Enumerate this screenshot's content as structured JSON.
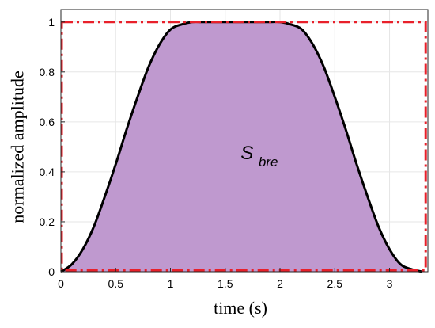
{
  "chart_data": {
    "type": "area",
    "title": "",
    "xlabel": "time (s)",
    "ylabel": "normalized amplitude",
    "xlim": [
      0,
      3.35
    ],
    "ylim": [
      0,
      1.05
    ],
    "x_ticks": [
      0,
      0.5,
      1,
      1.5,
      2,
      2.5,
      3
    ],
    "y_ticks": [
      0,
      0.2,
      0.4,
      0.6,
      0.8,
      1
    ],
    "grid": true,
    "series": [
      {
        "type": "area",
        "color": "#000000",
        "fill": "#bf99cf",
        "x": [
          0,
          0.1,
          0.2,
          0.3,
          0.4,
          0.5,
          0.6,
          0.7,
          0.8,
          0.9,
          1.0,
          1.1,
          1.2,
          1.3,
          1.5,
          1.7,
          1.9,
          2.0,
          2.1,
          2.2,
          2.3,
          2.4,
          2.5,
          2.6,
          2.7,
          2.8,
          2.9,
          3.0,
          3.1,
          3.2,
          3.3
        ],
        "y": [
          0,
          0.03,
          0.09,
          0.18,
          0.3,
          0.43,
          0.57,
          0.7,
          0.82,
          0.91,
          0.97,
          0.99,
          1.0,
          1.0,
          1.0,
          1.0,
          1.0,
          1.0,
          0.99,
          0.97,
          0.91,
          0.82,
          0.7,
          0.57,
          0.43,
          0.3,
          0.18,
          0.09,
          0.03,
          0.01,
          0
        ]
      },
      {
        "type": "rect-outline",
        "color": "#e8202a",
        "dash": "dash-dot",
        "x": [
          0,
          3.33
        ],
        "y": [
          0,
          1
        ]
      }
    ],
    "annotation": {
      "main": "S",
      "subscript": "bre",
      "x": 1.72,
      "y": 0.45
    }
  }
}
